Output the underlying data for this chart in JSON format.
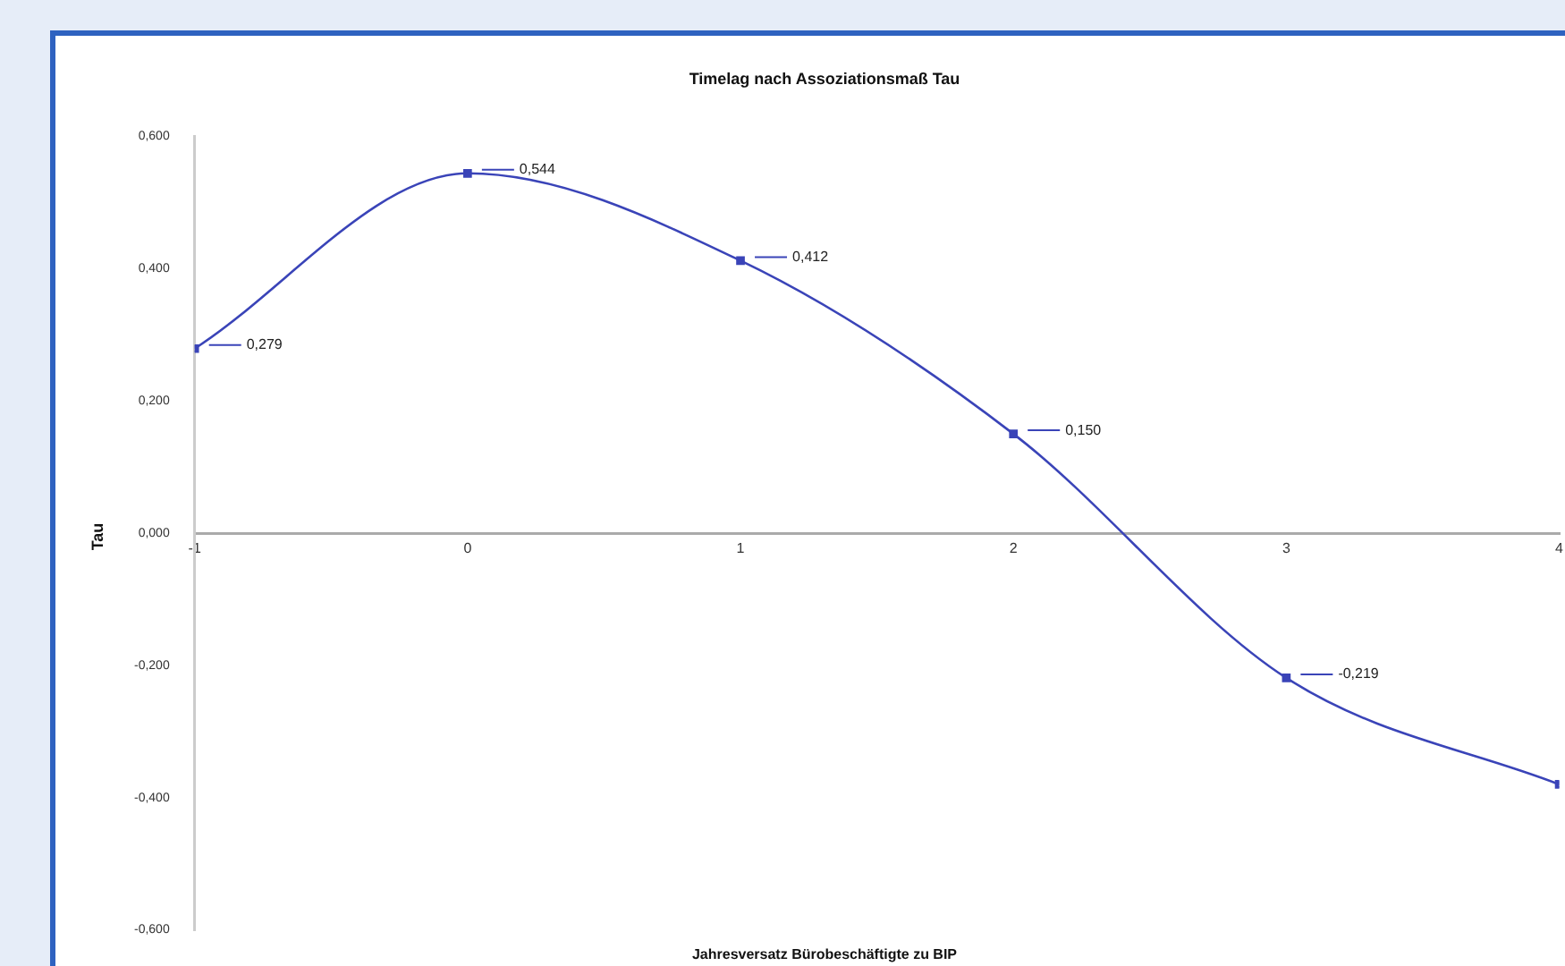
{
  "chart_data": {
    "type": "line",
    "title": "Timelag nach Assoziationsmaß Tau",
    "xlabel": "Jahresversatz Bürobeschäftigte zu BIP",
    "ylabel": "Tau",
    "x": [
      -1,
      0,
      1,
      2,
      3,
      4
    ],
    "series": [
      {
        "color": "#3a44b8",
        "values": [
          0.279,
          0.544,
          0.412,
          0.15,
          -0.219,
          -0.38
        ],
        "value_labels": [
          "0,279",
          "0,544",
          "0,412",
          "0,150",
          "-0,219",
          null
        ]
      }
    ],
    "xlim": [
      -1,
      4
    ],
    "xticks": [
      -1,
      0,
      1,
      2,
      3,
      4
    ],
    "ylim": [
      -0.6,
      0.6
    ],
    "yticks": [
      {
        "value": -0.6,
        "label": "-0,600"
      },
      {
        "value": -0.4,
        "label": "-0,400"
      },
      {
        "value": -0.2,
        "label": "-0,200"
      },
      {
        "value": 0,
        "label": "0,000"
      },
      {
        "value": 0.2,
        "label": "0,200"
      },
      {
        "value": 0.4,
        "label": "0,400"
      },
      {
        "value": 0.6,
        "label": "0,600"
      }
    ],
    "grid": false,
    "legend": false,
    "marker": "square",
    "line_style": "solid"
  }
}
